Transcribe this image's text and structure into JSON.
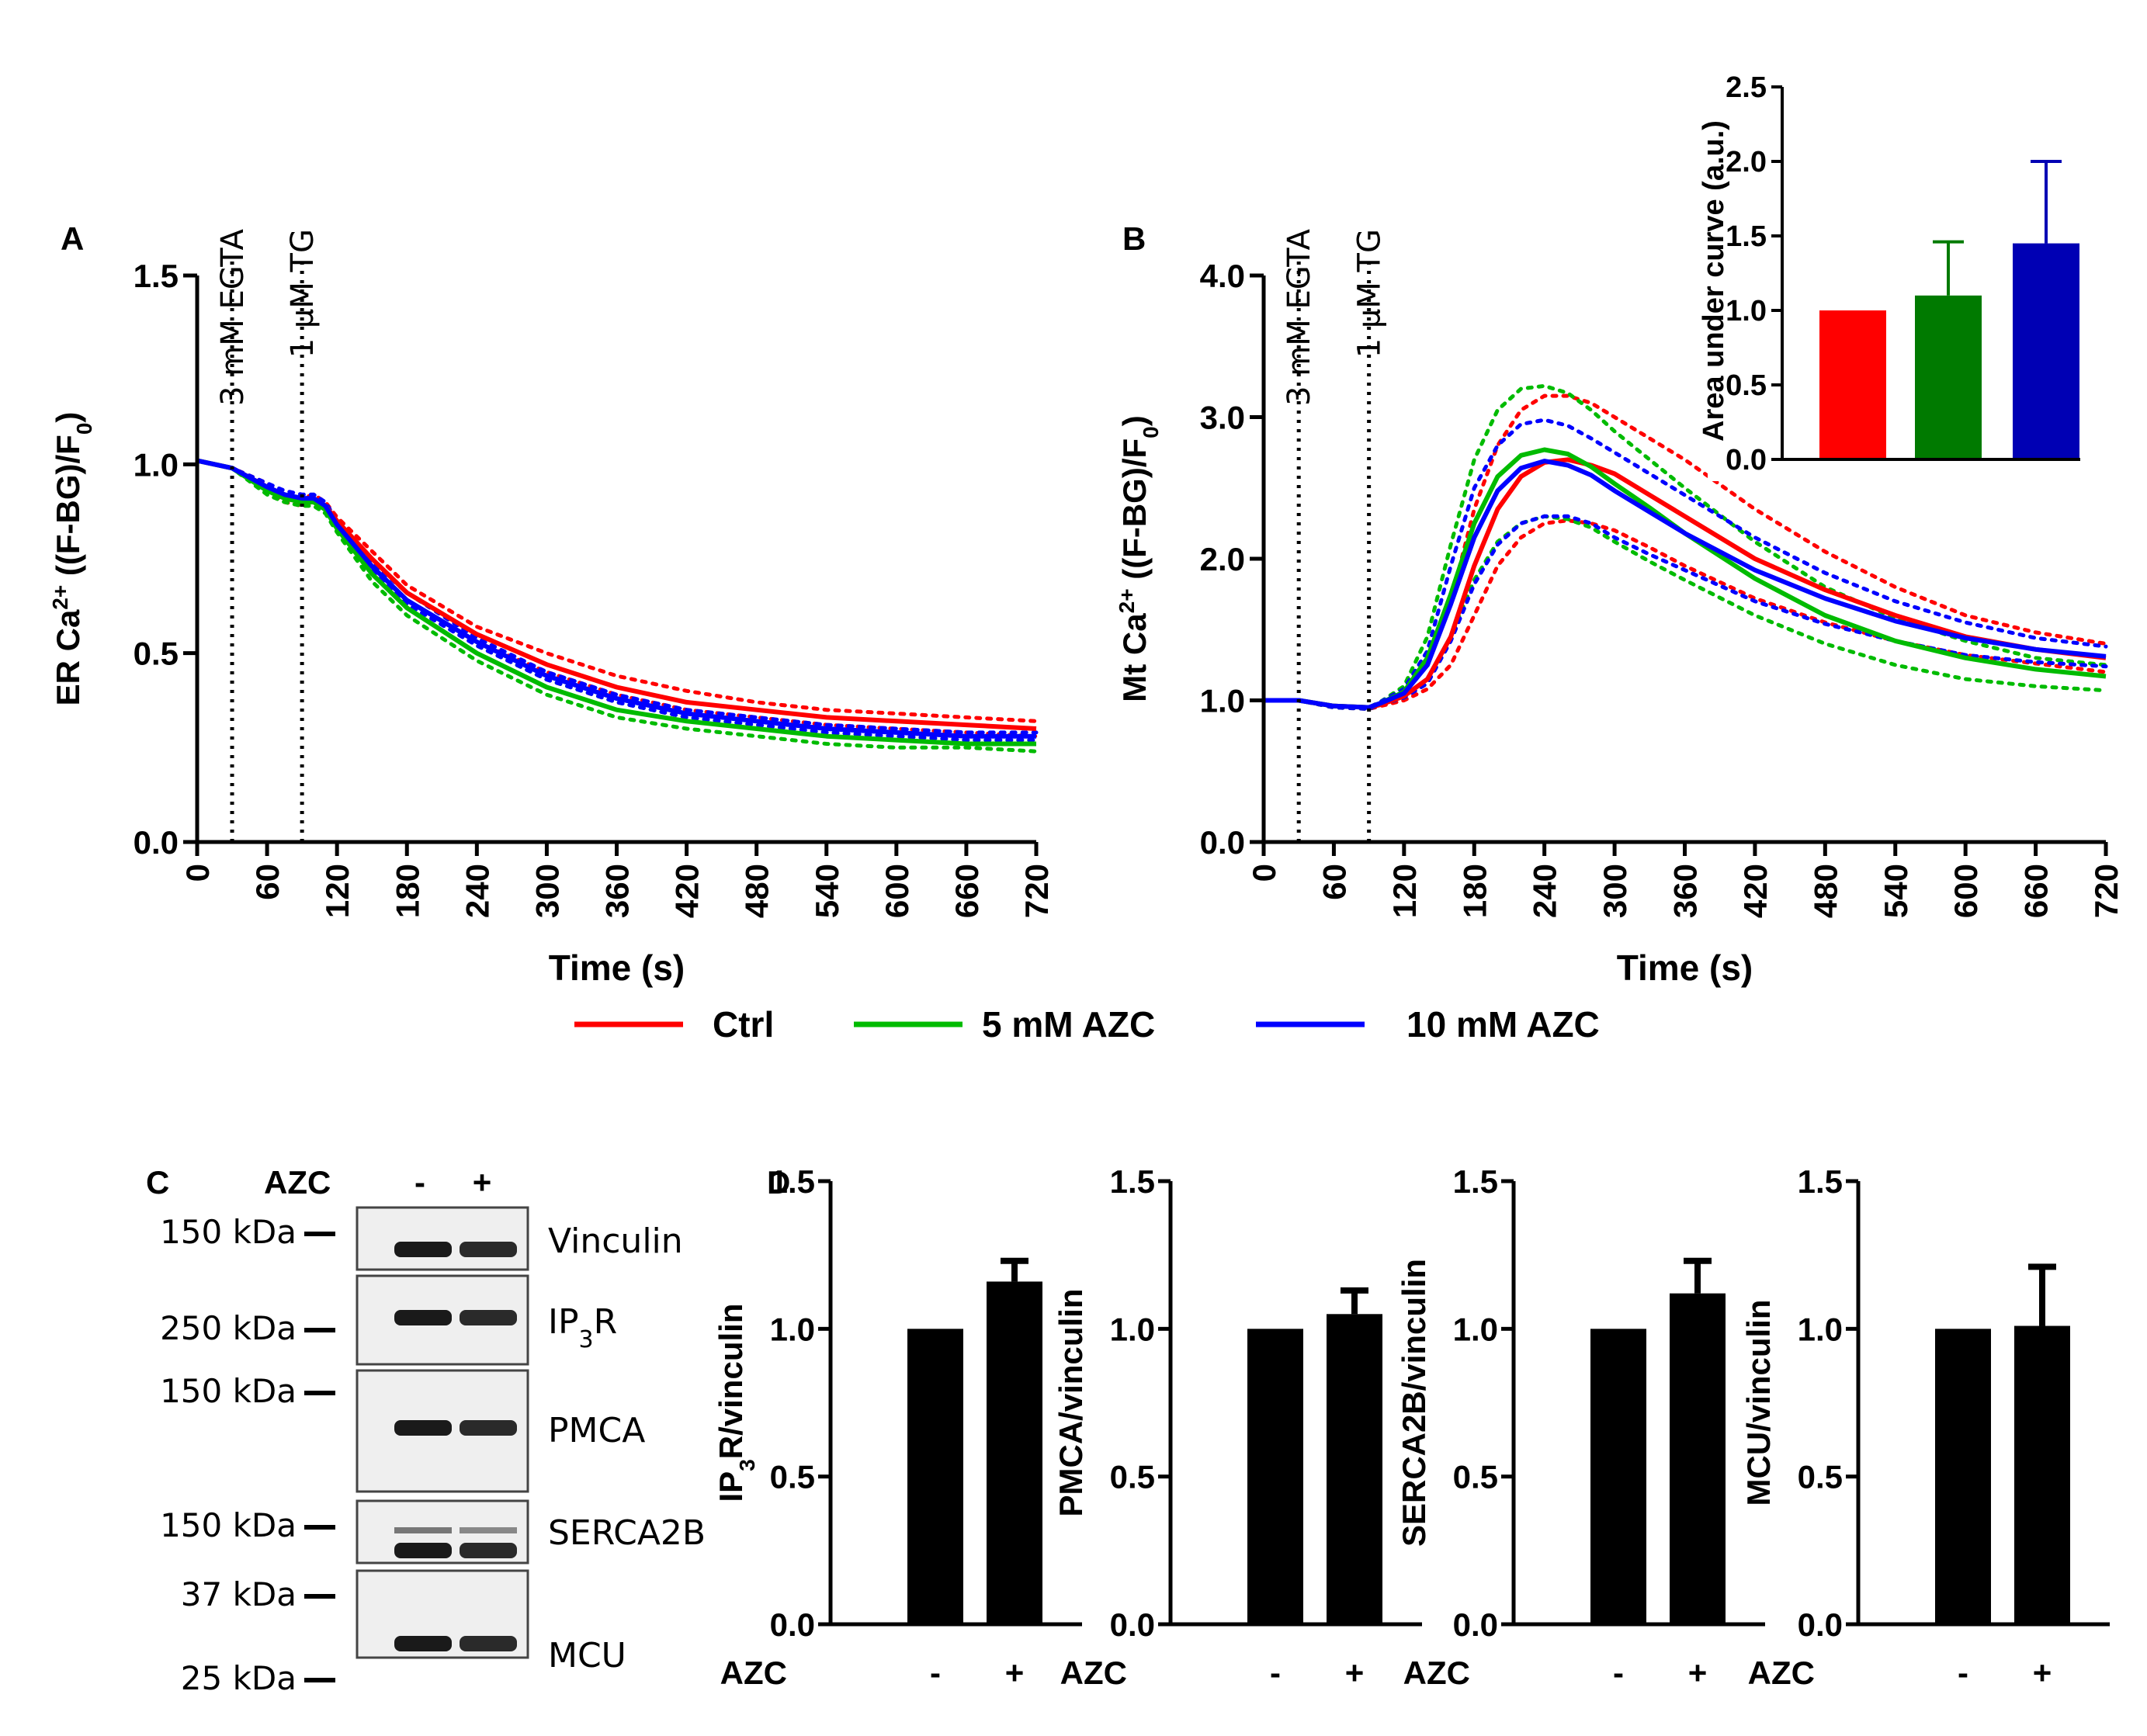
{
  "colors": {
    "ctrl": "#ff0000",
    "azc5": "#00bb00",
    "azc10": "#0000ff",
    "inset_green": "#007a00",
    "inset_blue": "#0000b4",
    "black": "#000000"
  },
  "legend": [
    "Ctrl",
    "5 mM AZC",
    "10 mM AZC"
  ],
  "chart_data": [
    {
      "panel": "A",
      "type": "line",
      "ylabel": "ER Ca2+ ((F-BG)/F0)",
      "xlabel": "Time (s)",
      "xlim": [
        0,
        720
      ],
      "ylim": [
        0,
        1.5
      ],
      "xticks": [
        "0",
        "60",
        "120",
        "180",
        "240",
        "300",
        "360",
        "420",
        "480",
        "540",
        "600",
        "660",
        "720"
      ],
      "yticks": [
        "0.0",
        "0.5",
        "1.0",
        "1.5"
      ],
      "annotations": [
        {
          "x": 30,
          "label": "3 mM EGTA"
        },
        {
          "x": 90,
          "label": "1 μM TG"
        }
      ],
      "series": [
        {
          "name": "Ctrl",
          "x": [
            0,
            30,
            60,
            75,
            90,
            100,
            110,
            120,
            150,
            180,
            240,
            300,
            360,
            420,
            480,
            540,
            600,
            660,
            720
          ],
          "y": [
            1.01,
            0.99,
            0.94,
            0.91,
            0.9,
            0.91,
            0.89,
            0.85,
            0.75,
            0.66,
            0.55,
            0.47,
            0.41,
            0.37,
            0.35,
            0.33,
            0.32,
            0.31,
            0.3
          ],
          "upper": [
            1.01,
            0.99,
            0.95,
            0.92,
            0.91,
            0.92,
            0.9,
            0.86,
            0.77,
            0.68,
            0.57,
            0.5,
            0.44,
            0.4,
            0.37,
            0.35,
            0.34,
            0.33,
            0.32
          ],
          "lower": [
            1.01,
            0.99,
            0.93,
            0.9,
            0.89,
            0.9,
            0.88,
            0.84,
            0.73,
            0.64,
            0.53,
            0.45,
            0.39,
            0.35,
            0.33,
            0.31,
            0.3,
            0.29,
            0.28
          ]
        },
        {
          "name": "5 mM AZC",
          "x": [
            0,
            30,
            60,
            75,
            90,
            100,
            110,
            120,
            150,
            180,
            240,
            300,
            360,
            420,
            480,
            540,
            600,
            660,
            720
          ],
          "y": [
            1.01,
            0.99,
            0.93,
            0.91,
            0.9,
            0.9,
            0.88,
            0.83,
            0.71,
            0.62,
            0.5,
            0.41,
            0.35,
            0.32,
            0.3,
            0.28,
            0.27,
            0.26,
            0.26
          ],
          "upper": [
            1.01,
            0.99,
            0.94,
            0.92,
            0.91,
            0.91,
            0.89,
            0.84,
            0.73,
            0.64,
            0.52,
            0.43,
            0.37,
            0.33,
            0.31,
            0.29,
            0.28,
            0.27,
            0.27
          ],
          "lower": [
            1.01,
            0.99,
            0.92,
            0.9,
            0.89,
            0.89,
            0.87,
            0.82,
            0.69,
            0.6,
            0.48,
            0.39,
            0.33,
            0.3,
            0.28,
            0.26,
            0.25,
            0.25,
            0.24
          ]
        },
        {
          "name": "10 mM AZC",
          "x": [
            0,
            30,
            60,
            75,
            90,
            100,
            110,
            120,
            150,
            180,
            240,
            300,
            360,
            420,
            480,
            540,
            600,
            660,
            720
          ],
          "y": [
            1.01,
            0.99,
            0.94,
            0.92,
            0.91,
            0.91,
            0.89,
            0.84,
            0.73,
            0.64,
            0.53,
            0.44,
            0.38,
            0.34,
            0.32,
            0.3,
            0.29,
            0.28,
            0.28
          ],
          "upper": [
            1.01,
            0.99,
            0.95,
            0.93,
            0.92,
            0.92,
            0.9,
            0.85,
            0.74,
            0.66,
            0.54,
            0.45,
            0.39,
            0.35,
            0.33,
            0.31,
            0.3,
            0.29,
            0.29
          ],
          "lower": [
            1.01,
            0.99,
            0.93,
            0.91,
            0.9,
            0.9,
            0.88,
            0.83,
            0.72,
            0.63,
            0.52,
            0.43,
            0.37,
            0.33,
            0.31,
            0.29,
            0.28,
            0.27,
            0.27
          ]
        }
      ]
    },
    {
      "panel": "B",
      "type": "line",
      "ylabel": "Mt Ca2+ ((F-BG)/F0)",
      "xlabel": "Time (s)",
      "xlim": [
        0,
        720
      ],
      "ylim": [
        0,
        4.0
      ],
      "xticks": [
        "0",
        "60",
        "120",
        "180",
        "240",
        "300",
        "360",
        "420",
        "480",
        "540",
        "600",
        "660",
        "720"
      ],
      "yticks": [
        "0.0",
        "1.0",
        "2.0",
        "3.0",
        "4.0"
      ],
      "annotations": [
        {
          "x": 30,
          "label": "3 mM EGTA"
        },
        {
          "x": 90,
          "label": "1 μM TG"
        }
      ],
      "series": [
        {
          "name": "Ctrl",
          "x": [
            0,
            30,
            60,
            90,
            100,
            120,
            140,
            160,
            180,
            200,
            220,
            240,
            260,
            280,
            300,
            330,
            360,
            420,
            480,
            540,
            600,
            660,
            720
          ],
          "y": [
            1.0,
            1.0,
            0.96,
            0.95,
            0.97,
            1.03,
            1.15,
            1.45,
            1.95,
            2.35,
            2.58,
            2.68,
            2.7,
            2.66,
            2.6,
            2.45,
            2.3,
            2.0,
            1.78,
            1.6,
            1.45,
            1.36,
            1.3
          ],
          "upper": [
            1.0,
            1.0,
            0.96,
            0.95,
            0.98,
            1.05,
            1.25,
            1.7,
            2.35,
            2.8,
            3.05,
            3.15,
            3.15,
            3.1,
            3.0,
            2.85,
            2.7,
            2.35,
            2.05,
            1.8,
            1.6,
            1.48,
            1.4
          ],
          "lower": [
            1.0,
            1.0,
            0.95,
            0.94,
            0.96,
            1.0,
            1.08,
            1.25,
            1.6,
            1.95,
            2.15,
            2.25,
            2.27,
            2.25,
            2.2,
            2.08,
            1.95,
            1.72,
            1.55,
            1.42,
            1.32,
            1.26,
            1.2
          ]
        },
        {
          "name": "5 mM AZC",
          "x": [
            0,
            30,
            60,
            90,
            100,
            120,
            140,
            160,
            180,
            200,
            220,
            240,
            260,
            280,
            300,
            330,
            360,
            420,
            480,
            540,
            600,
            660,
            720
          ],
          "y": [
            1.0,
            1.0,
            0.96,
            0.95,
            0.98,
            1.06,
            1.3,
            1.75,
            2.25,
            2.58,
            2.73,
            2.77,
            2.74,
            2.65,
            2.53,
            2.36,
            2.18,
            1.86,
            1.6,
            1.42,
            1.3,
            1.22,
            1.17
          ],
          "upper": [
            1.0,
            1.0,
            0.96,
            0.95,
            0.99,
            1.1,
            1.45,
            2.1,
            2.7,
            3.05,
            3.2,
            3.22,
            3.17,
            3.05,
            2.9,
            2.7,
            2.5,
            2.12,
            1.8,
            1.58,
            1.42,
            1.3,
            1.25
          ],
          "lower": [
            1.0,
            1.0,
            0.95,
            0.94,
            0.97,
            1.02,
            1.15,
            1.45,
            1.85,
            2.12,
            2.25,
            2.3,
            2.28,
            2.22,
            2.12,
            1.98,
            1.85,
            1.6,
            1.4,
            1.25,
            1.15,
            1.1,
            1.07
          ]
        },
        {
          "name": "10 mM AZC",
          "x": [
            0,
            30,
            60,
            90,
            100,
            120,
            140,
            160,
            180,
            200,
            220,
            240,
            260,
            280,
            300,
            330,
            360,
            420,
            480,
            540,
            600,
            660,
            720
          ],
          "y": [
            1.0,
            1.0,
            0.96,
            0.95,
            0.98,
            1.05,
            1.25,
            1.68,
            2.15,
            2.48,
            2.64,
            2.69,
            2.66,
            2.59,
            2.48,
            2.33,
            2.18,
            1.92,
            1.72,
            1.56,
            1.44,
            1.36,
            1.31
          ],
          "upper": [
            1.0,
            1.0,
            0.96,
            0.95,
            0.99,
            1.08,
            1.35,
            1.95,
            2.5,
            2.8,
            2.95,
            2.98,
            2.94,
            2.85,
            2.75,
            2.6,
            2.45,
            2.15,
            1.9,
            1.7,
            1.55,
            1.44,
            1.38
          ],
          "lower": [
            1.0,
            1.0,
            0.95,
            0.94,
            0.97,
            1.02,
            1.12,
            1.42,
            1.82,
            2.1,
            2.25,
            2.3,
            2.3,
            2.25,
            2.15,
            2.03,
            1.92,
            1.7,
            1.54,
            1.42,
            1.32,
            1.27,
            1.24
          ]
        }
      ]
    },
    {
      "panel": "B-inset",
      "type": "bar",
      "ylabel": "Area under curve (a.u.)",
      "ylim": [
        0,
        2.5
      ],
      "yticks": [
        "0.0",
        "0.5",
        "1.0",
        "1.5",
        "2.0",
        "2.5"
      ],
      "categories": [
        "Ctrl",
        "5 mM AZC",
        "10 mM AZC"
      ],
      "values": [
        1.0,
        1.1,
        1.45
      ],
      "errors": [
        0,
        0.36,
        0.55
      ]
    },
    {
      "panel": "C",
      "type": "blot",
      "treatment_label": "AZC",
      "lanes": [
        "-",
        "+"
      ],
      "markers": [
        "150 kDa",
        "250 kDa",
        "150 kDa",
        "150 kDa",
        "37 kDa",
        "25 kDa"
      ],
      "proteins": [
        "Vinculin",
        "IP",
        "PMCA",
        "SERCA2B",
        "MCU"
      ],
      "ip3r_sub": "3",
      "ip3r_tail": "R"
    },
    {
      "panel": "D",
      "type": "bar",
      "treatment_label": "AZC",
      "categories": [
        "-",
        "+"
      ],
      "ylim": [
        0,
        1.5
      ],
      "yticks": [
        "0.0",
        "0.5",
        "1.0",
        "1.5"
      ],
      "charts": [
        {
          "ylabel": "IP3R/vinculin",
          "values": [
            1.0,
            1.16
          ],
          "errors": [
            0,
            0.07
          ]
        },
        {
          "ylabel": "PMCA/vinculin",
          "values": [
            1.0,
            1.05
          ],
          "errors": [
            0,
            0.08
          ]
        },
        {
          "ylabel": "SERCA2B/vinculin",
          "values": [
            1.0,
            1.12
          ],
          "errors": [
            0,
            0.11
          ]
        },
        {
          "ylabel": "MCU/vinculin",
          "values": [
            1.0,
            1.01
          ],
          "errors": [
            0,
            0.2
          ]
        }
      ]
    }
  ],
  "labels": {
    "A": "A",
    "B": "B",
    "C": "C",
    "D": "D"
  },
  "ip3r_label": {
    "main": "IP",
    "sub": "3",
    "tail": "R/vinculin"
  },
  "ca_label": {
    "er": "ER Ca",
    "mt": "Mt Ca",
    "sup": "2+",
    "tail": " ((F-BG)/F",
    "sub0": "0",
    "close": ")"
  }
}
